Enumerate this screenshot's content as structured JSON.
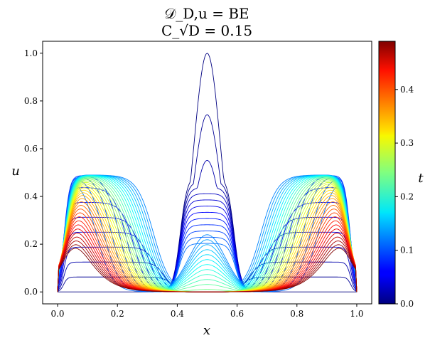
{
  "chart_data": {
    "type": "line",
    "title_line1": "𝒟_D,u = BE",
    "title_line2": "C_√D = 0.15",
    "xlabel": "x",
    "ylabel": "u",
    "colorbar_label": "t",
    "xlim": [
      -0.05,
      1.05
    ],
    "ylim": [
      -0.05,
      1.05
    ],
    "xticks": [
      0.0,
      0.2,
      0.4,
      0.6,
      0.8,
      1.0
    ],
    "xtick_labels": [
      "0.0",
      "0.2",
      "0.4",
      "0.6",
      "0.8",
      "1.0"
    ],
    "yticks": [
      0.0,
      0.2,
      0.4,
      0.6,
      0.8,
      1.0
    ],
    "ytick_labels": [
      "0.0",
      "0.2",
      "0.4",
      "0.6",
      "0.8",
      "1.0"
    ],
    "colorbar_range": [
      0.0,
      0.49
    ],
    "colorbar_ticks": [
      0.0,
      0.1,
      0.2,
      0.3,
      0.4
    ],
    "colorbar_tick_labels": [
      "0.0",
      "0.1",
      "0.2",
      "0.3",
      "0.4"
    ],
    "colormap": "jet",
    "curves": {
      "count": 48,
      "t_start": 0.0,
      "t_end": 0.49,
      "initial_peak_center": 0.5,
      "initial_peak_value": 1.0,
      "plateau_value": 0.49,
      "boundary_values": [
        0.0,
        0.0
      ],
      "x_range": [
        0.0,
        1.0
      ]
    },
    "grid": false
  }
}
